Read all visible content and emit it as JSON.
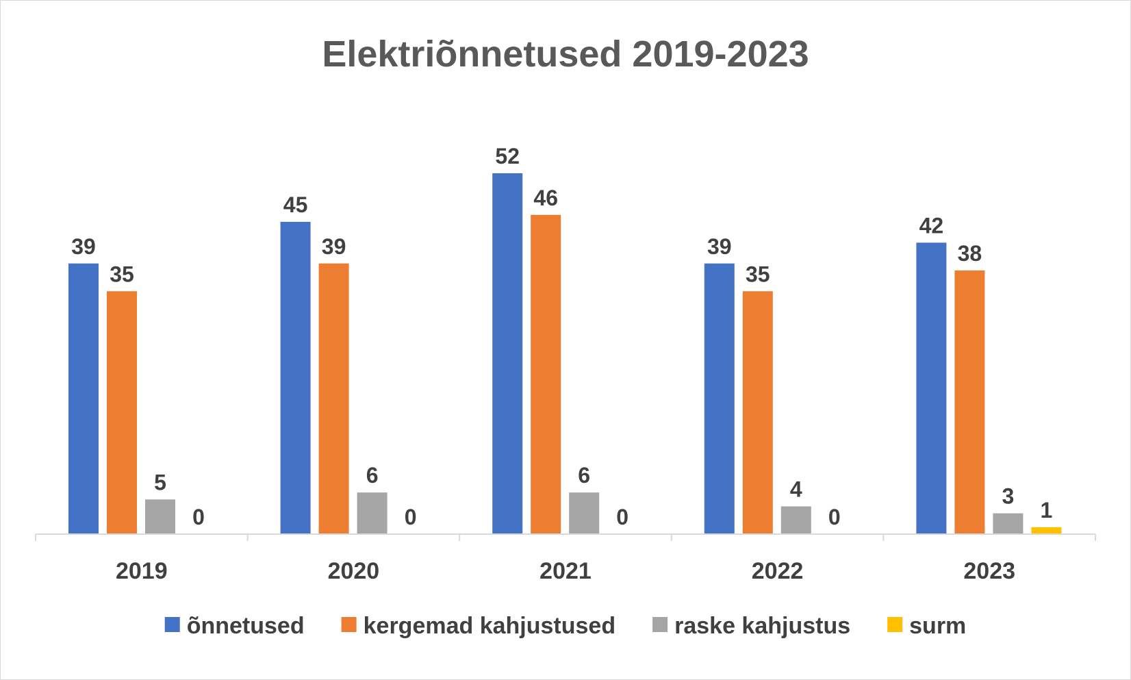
{
  "chart_data": {
    "type": "bar",
    "title": "Elektriõnnetused 2019-2023",
    "xlabel": "",
    "ylabel": "",
    "ylim": [
      0,
      52
    ],
    "grid": false,
    "legend_position": "bottom",
    "categories": [
      "2019",
      "2020",
      "2021",
      "2022",
      "2023"
    ],
    "series": [
      {
        "name": "õnnetused",
        "color": "#4472c4",
        "values": [
          39,
          45,
          52,
          39,
          42
        ]
      },
      {
        "name": "kergemad kahjustused",
        "color": "#ed7d31",
        "values": [
          35,
          39,
          46,
          35,
          38
        ]
      },
      {
        "name": "raske kahjustus",
        "color": "#a5a5a5",
        "values": [
          5,
          6,
          6,
          4,
          3
        ]
      },
      {
        "name": "surm",
        "color": "#ffc000",
        "values": [
          0,
          0,
          0,
          0,
          1
        ]
      }
    ]
  }
}
